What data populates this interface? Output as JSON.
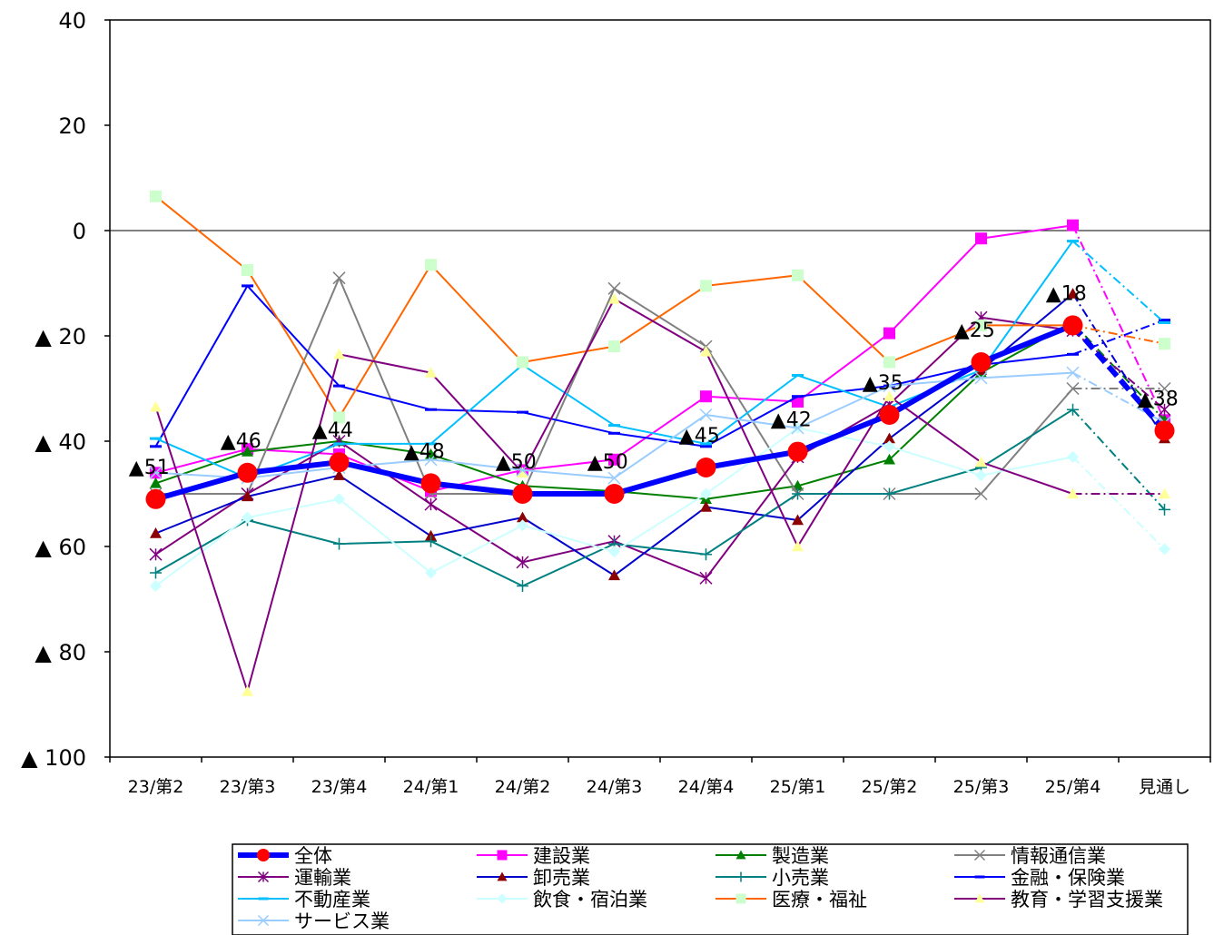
{
  "chart_data": {
    "type": "line",
    "categories": [
      "23/第2",
      "23/第3",
      "23/第4",
      "24/第1",
      "24/第2",
      "24/第3",
      "24/第4",
      "25/第1",
      "25/第2",
      "25/第3",
      "25/第4",
      "見通し"
    ],
    "ylim": [
      -100,
      40
    ],
    "yticks": [
      {
        "value": 40,
        "label": "40"
      },
      {
        "value": 20,
        "label": "20"
      },
      {
        "value": 0,
        "label": "0"
      },
      {
        "value": -20,
        "label": "▲ 20"
      },
      {
        "value": -40,
        "label": "▲ 40"
      },
      {
        "value": -60,
        "label": "▲ 60"
      },
      {
        "value": -80,
        "label": "▲ 80"
      },
      {
        "value": -100,
        "label": "▲ 100"
      }
    ],
    "grid": false,
    "legend_position": "bottom",
    "series": [
      {
        "name": "全体",
        "color": "#0000ff",
        "marker": "circle",
        "marker_color": "#ff0000",
        "width": 6,
        "values": [
          -51,
          -46,
          -44,
          -48,
          -50,
          -50,
          -45,
          -42,
          -35,
          -25,
          -18,
          -38
        ],
        "labels": [
          "▲51",
          "▲46",
          "▲44",
          "▲48",
          "▲50",
          "▲50",
          "▲45",
          "▲42",
          "▲35",
          "▲25",
          "▲18",
          "▲38"
        ]
      },
      {
        "name": "建設業",
        "color": "#ff00ff",
        "marker": "square",
        "values": [
          -46,
          -41.5,
          -42.5,
          -49.5,
          -45.5,
          -43.5,
          -31.5,
          -32.5,
          -19.5,
          -1.5,
          1,
          -36
        ]
      },
      {
        "name": "製造業",
        "color": "#008000",
        "marker": "triangle",
        "values": [
          -48,
          -42,
          -40,
          -42.5,
          -48.5,
          -49.5,
          -51,
          -48.5,
          -43.5,
          -27,
          -17.5,
          -36
        ]
      },
      {
        "name": "情報通信業",
        "color": "#808080",
        "marker": "x",
        "values": [
          -50,
          -50,
          -9,
          -50,
          -50,
          -11,
          -22,
          -50,
          -50,
          -50,
          -30,
          -30
        ]
      },
      {
        "name": "運輸業",
        "color": "#800080",
        "marker": "star",
        "values": [
          -61.5,
          -50,
          -40,
          -52,
          -63,
          -59,
          -66,
          -43,
          -33,
          -16.5,
          -19,
          -34
        ]
      },
      {
        "name": "卸売業",
        "color": "#0000cc",
        "marker": "triangle",
        "marker_color": "#8b0000",
        "values": [
          -57.5,
          -50.5,
          -46.5,
          -58,
          -54.5,
          -65.5,
          -52.5,
          -55,
          -39.5,
          -26.5,
          -12,
          -39.5
        ]
      },
      {
        "name": "小売業",
        "color": "#008080",
        "marker": "plus",
        "values": [
          -65,
          -55,
          -59.5,
          -59,
          -67.5,
          -59.5,
          -61.5,
          -50,
          -50,
          -45,
          -34,
          -53
        ]
      },
      {
        "name": "金融・保険業",
        "color": "#0000ff",
        "marker": "dash",
        "values": [
          -41,
          -10.5,
          -29.5,
          -34,
          -34.5,
          -38.5,
          -41,
          -31.5,
          -29.5,
          -25.5,
          -23.5,
          -17
        ]
      },
      {
        "name": "不動産業",
        "color": "#00bfff",
        "marker": "dash",
        "values": [
          -39.5,
          -47,
          -40.5,
          -40.5,
          -25.5,
          -37,
          -40.5,
          -27.5,
          -33.5,
          -26.5,
          -2,
          -17.5
        ]
      },
      {
        "name": "飲食・宿泊業",
        "color": "#ccffff",
        "marker": "diamond",
        "values": [
          -67.5,
          -54.5,
          -51,
          -65,
          -56,
          -61,
          -50,
          -37.5,
          -41,
          -46.5,
          -43,
          -60.5
        ]
      },
      {
        "name": "医療・福祉",
        "color": "#ff6600",
        "marker": "square",
        "marker_color": "#ccffcc",
        "values": [
          6.5,
          -7.5,
          -35.5,
          -6.5,
          -25,
          -22,
          -10.5,
          -8.5,
          -25,
          -18,
          -18,
          -21.5
        ]
      },
      {
        "name": "教育・学習支援業",
        "color": "#800080",
        "marker": "triangle",
        "marker_color": "#ffff99",
        "values": [
          -33.5,
          -87.5,
          -23.5,
          -27,
          -46,
          -13,
          -23,
          -60,
          -31.5,
          -44,
          -50,
          -50
        ]
      },
      {
        "name": "サービス業",
        "color": "#99ccff",
        "marker": "x",
        "values": [
          -46,
          -47,
          -45,
          -43.5,
          -45.5,
          -47,
          -35,
          -37.5,
          -29.5,
          -28,
          -27,
          -36.5
        ]
      }
    ]
  }
}
